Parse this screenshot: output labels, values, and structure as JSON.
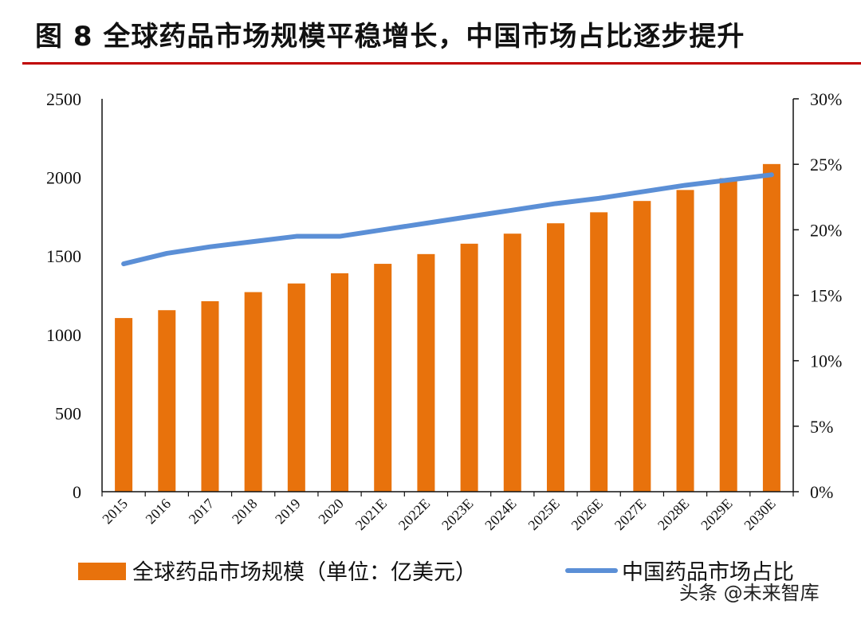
{
  "title": "图 8 全球药品市场规模平稳增长，中国市场占比逐步提升",
  "watermark": "头条 @未来智库",
  "chart_data": {
    "type": "bar",
    "categories": [
      "2015",
      "2016",
      "2017",
      "2018",
      "2019",
      "2020",
      "2021E",
      "2022E",
      "2023E",
      "2024E",
      "2025E",
      "2026E",
      "2027E",
      "2028E",
      "2029E",
      "2030E"
    ],
    "y_left": {
      "ticks": [
        "0",
        "500",
        "1000",
        "1500",
        "2000",
        "2500"
      ],
      "range": [
        0,
        2500
      ]
    },
    "y_right": {
      "ticks": [
        "0%",
        "5%",
        "10%",
        "15%",
        "20%",
        "25%",
        "30%"
      ],
      "range": [
        0,
        30
      ]
    },
    "series": [
      {
        "name": "全球药品市场规模（单位：亿美元）",
        "type": "bar",
        "axis": "left",
        "color": "#e8720c",
        "values": [
          1105,
          1155,
          1212,
          1270,
          1325,
          1390,
          1450,
          1512,
          1578,
          1642,
          1708,
          1778,
          1850,
          1920,
          1995,
          2085
        ]
      },
      {
        "name": "中国药品市场占比",
        "type": "line",
        "axis": "right",
        "color": "#5b8fd6",
        "values": [
          17.4,
          18.2,
          18.7,
          19.1,
          19.5,
          19.5,
          20.0,
          20.5,
          21.0,
          21.5,
          22.0,
          22.4,
          22.9,
          23.4,
          23.8,
          24.2
        ]
      }
    ],
    "legend": "bottom",
    "grid": false
  }
}
